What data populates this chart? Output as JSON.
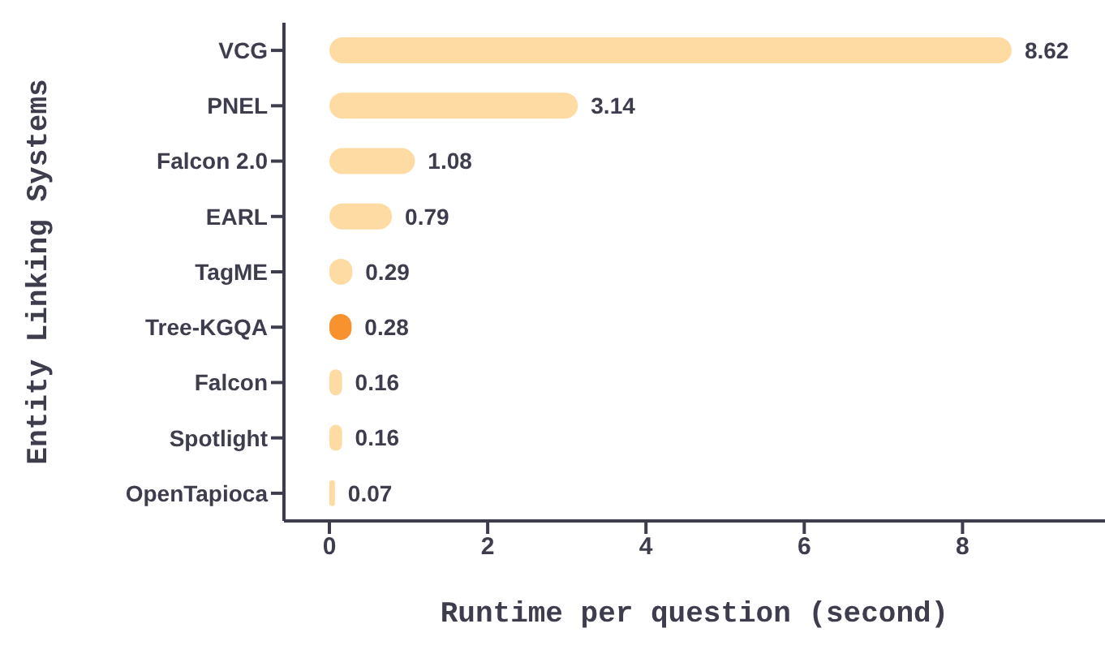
{
  "chart_data": {
    "type": "bar",
    "orientation": "horizontal",
    "categories": [
      "VCG",
      "PNEL",
      "Falcon 2.0",
      "EARL",
      "TagME",
      "Tree-KGQA",
      "Falcon",
      "Spotlight",
      "OpenTapioca"
    ],
    "values": [
      8.62,
      3.14,
      1.08,
      0.79,
      0.29,
      0.28,
      0.16,
      0.16,
      0.07
    ],
    "colors": [
      "#fedba3",
      "#fedba3",
      "#fedba3",
      "#fedba3",
      "#fedba3",
      "#f7922e",
      "#fedba3",
      "#fedba3",
      "#fedba3"
    ],
    "xlim": [
      0,
      9.8
    ],
    "xticks": [
      0,
      2,
      4,
      6,
      8
    ],
    "xlabel": "Runtime per question (second)",
    "ylabel": "Entity Linking Systems",
    "data_labels": true,
    "grid": false,
    "legend": false
  }
}
